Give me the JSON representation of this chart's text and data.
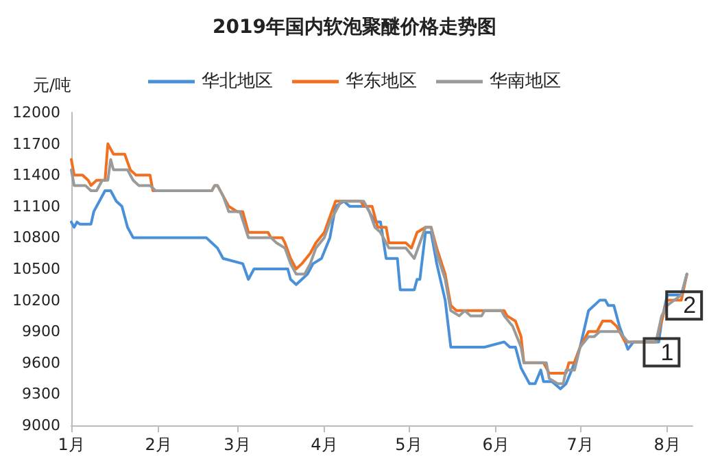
{
  "chart_data": {
    "type": "line",
    "title": "2019年国内软泡聚醚价格走势图",
    "ylabel": "元/吨",
    "xlim": [
      "2019-01-01",
      "2019-08-10"
    ],
    "xticks": [
      {
        "value": "2019-01-01",
        "label": "1月"
      },
      {
        "value": "2019-02-01",
        "label": "2月"
      },
      {
        "value": "2019-03-01",
        "label": "3月"
      },
      {
        "value": "2019-04-01",
        "label": "4月"
      },
      {
        "value": "2019-05-01",
        "label": "5月"
      },
      {
        "value": "2019-06-01",
        "label": "6月"
      },
      {
        "value": "2019-07-01",
        "label": "7月"
      },
      {
        "value": "2019-08-01",
        "label": "8月"
      }
    ],
    "ylim": [
      9000,
      12000
    ],
    "yticks": [
      9000,
      9300,
      9600,
      9900,
      10200,
      10500,
      10800,
      11100,
      11400,
      11700,
      12000
    ],
    "grid": false,
    "legend": "top",
    "marker": "none",
    "line_style": "solid",
    "annotations": [
      {
        "text": "1",
        "x": "2019-07-30",
        "y": 9700
      },
      {
        "text": "2",
        "x": "2019-08-07",
        "y": 10150
      }
    ],
    "series": [
      {
        "name": "华北地区",
        "color": "#4a90d9",
        "x": [
          "2019-01-01",
          "2019-01-02",
          "2019-01-03",
          "2019-01-04",
          "2019-01-08",
          "2019-01-09",
          "2019-01-13",
          "2019-01-15",
          "2019-01-17",
          "2019-01-19",
          "2019-01-21",
          "2019-01-23",
          "2019-02-18",
          "2019-02-20",
          "2019-02-22",
          "2019-02-24",
          "2019-03-03",
          "2019-03-05",
          "2019-03-07",
          "2019-03-19",
          "2019-03-20",
          "2019-03-22",
          "2019-03-24",
          "2019-03-26",
          "2019-03-28",
          "2019-03-31",
          "2019-04-03",
          "2019-04-05",
          "2019-04-08",
          "2019-04-10",
          "2019-04-16",
          "2019-04-17",
          "2019-04-19",
          "2019-04-21",
          "2019-04-23",
          "2019-04-27",
          "2019-04-28",
          "2019-05-03",
          "2019-05-04",
          "2019-05-05",
          "2019-05-07",
          "2019-05-09",
          "2019-05-11",
          "2019-05-14",
          "2019-05-16",
          "2019-05-28",
          "2019-06-04",
          "2019-06-06",
          "2019-06-08",
          "2019-06-10",
          "2019-06-12",
          "2019-06-13",
          "2019-06-15",
          "2019-06-17",
          "2019-06-18",
          "2019-06-21",
          "2019-06-24",
          "2019-06-26",
          "2019-06-28",
          "2019-07-01",
          "2019-07-04",
          "2019-07-08",
          "2019-07-10",
          "2019-07-11",
          "2019-07-13",
          "2019-07-15",
          "2019-07-18",
          "2019-07-20",
          "2019-07-29",
          "2019-07-30",
          "2019-08-01",
          "2019-08-06",
          "2019-08-08"
        ],
        "values": [
          10950,
          10900,
          10950,
          10930,
          10930,
          11050,
          11250,
          11250,
          11150,
          11100,
          10900,
          10800,
          10800,
          10750,
          10700,
          10600,
          10550,
          10400,
          10500,
          10500,
          10400,
          10350,
          10400,
          10450,
          10550,
          10600,
          10800,
          11100,
          11150,
          11100,
          11100,
          11050,
          10950,
          10950,
          10600,
          10600,
          10300,
          10300,
          10400,
          10400,
          10850,
          10850,
          10550,
          10200,
          9750,
          9750,
          9800,
          9750,
          9750,
          9550,
          9450,
          9400,
          9400,
          9530,
          9420,
          9420,
          9350,
          9400,
          9530,
          9750,
          10100,
          10200,
          10200,
          10150,
          10150,
          9950,
          9730,
          9800,
          9800,
          10000,
          10250,
          10250,
          10450
        ]
      },
      {
        "name": "华东地区",
        "color": "#f07020",
        "x": [
          "2019-01-01",
          "2019-01-02",
          "2019-01-05",
          "2019-01-07",
          "2019-01-08",
          "2019-01-10",
          "2019-01-13",
          "2019-01-14",
          "2019-01-16",
          "2019-01-20",
          "2019-01-22",
          "2019-01-24",
          "2019-01-29",
          "2019-01-30",
          "2019-02-20",
          "2019-02-21",
          "2019-02-22",
          "2019-02-24",
          "2019-02-26",
          "2019-03-01",
          "2019-03-03",
          "2019-03-05",
          "2019-03-12",
          "2019-03-13",
          "2019-03-17",
          "2019-03-18",
          "2019-03-20",
          "2019-03-22",
          "2019-03-24",
          "2019-03-27",
          "2019-03-29",
          "2019-04-01",
          "2019-04-03",
          "2019-04-05",
          "2019-04-14",
          "2019-04-15",
          "2019-04-18",
          "2019-04-20",
          "2019-04-23",
          "2019-04-24",
          "2019-04-30",
          "2019-05-02",
          "2019-05-04",
          "2019-05-07",
          "2019-05-09",
          "2019-05-11",
          "2019-05-14",
          "2019-05-16",
          "2019-05-18",
          "2019-05-20",
          "2019-06-04",
          "2019-06-05",
          "2019-06-08",
          "2019-06-10",
          "2019-06-11",
          "2019-06-18",
          "2019-06-20",
          "2019-06-26",
          "2019-06-27",
          "2019-06-29",
          "2019-07-01",
          "2019-07-04",
          "2019-07-07",
          "2019-07-09",
          "2019-07-12",
          "2019-07-14",
          "2019-07-17",
          "2019-07-28",
          "2019-08-01",
          "2019-08-06",
          "2019-08-08"
        ],
        "values": [
          11550,
          11400,
          11400,
          11350,
          11300,
          11350,
          11350,
          11700,
          11600,
          11600,
          11450,
          11400,
          11400,
          11250,
          11250,
          11300,
          11300,
          11200,
          11100,
          11050,
          11050,
          10850,
          10850,
          10800,
          10800,
          10750,
          10600,
          10500,
          10550,
          10650,
          10750,
          10850,
          11000,
          11150,
          11150,
          11100,
          11100,
          10900,
          10900,
          10750,
          10750,
          10700,
          10850,
          10900,
          10900,
          10700,
          10450,
          10150,
          10100,
          10100,
          10100,
          10050,
          10000,
          9850,
          9600,
          9600,
          9500,
          9500,
          9600,
          9600,
          9750,
          9900,
          9900,
          10000,
          10000,
          9950,
          9800,
          9800,
          10200,
          10200,
          10450
        ]
      },
      {
        "name": "华南地区",
        "color": "#9a9a9a",
        "x": [
          "2019-01-01",
          "2019-01-02",
          "2019-01-06",
          "2019-01-08",
          "2019-01-10",
          "2019-01-12",
          "2019-01-14",
          "2019-01-15",
          "2019-01-16",
          "2019-01-21",
          "2019-01-23",
          "2019-01-25",
          "2019-01-29",
          "2019-01-31",
          "2019-02-20",
          "2019-02-21",
          "2019-02-22",
          "2019-02-24",
          "2019-02-26",
          "2019-03-02",
          "2019-03-05",
          "2019-03-13",
          "2019-03-15",
          "2019-03-18",
          "2019-03-20",
          "2019-03-22",
          "2019-03-25",
          "2019-03-27",
          "2019-03-29",
          "2019-04-01",
          "2019-04-03",
          "2019-04-05",
          "2019-04-07",
          "2019-04-15",
          "2019-04-17",
          "2019-04-19",
          "2019-04-21",
          "2019-04-24",
          "2019-04-30",
          "2019-05-03",
          "2019-05-07",
          "2019-05-09",
          "2019-05-11",
          "2019-05-14",
          "2019-05-16",
          "2019-05-19",
          "2019-05-21",
          "2019-05-23",
          "2019-05-27",
          "2019-05-28",
          "2019-06-03",
          "2019-06-04",
          "2019-06-07",
          "2019-06-10",
          "2019-06-11",
          "2019-06-19",
          "2019-06-20",
          "2019-06-23",
          "2019-06-25",
          "2019-06-26",
          "2019-06-29",
          "2019-07-01",
          "2019-07-04",
          "2019-07-06",
          "2019-07-08",
          "2019-07-15",
          "2019-07-18",
          "2019-07-28",
          "2019-07-30",
          "2019-08-01",
          "2019-08-06",
          "2019-08-08"
        ],
        "values": [
          11450,
          11300,
          11300,
          11250,
          11250,
          11350,
          11350,
          11550,
          11450,
          11450,
          11350,
          11300,
          11300,
          11250,
          11250,
          11300,
          11300,
          11200,
          11050,
          11050,
          10800,
          10800,
          10750,
          10700,
          10550,
          10450,
          10450,
          10550,
          10700,
          10800,
          10950,
          11050,
          11150,
          11150,
          11050,
          10900,
          10850,
          10700,
          10700,
          10600,
          10900,
          10900,
          10650,
          10400,
          10100,
          10050,
          10100,
          10050,
          10050,
          10100,
          10100,
          10050,
          9950,
          9750,
          9600,
          9600,
          9450,
          9400,
          9400,
          9530,
          9530,
          9750,
          9850,
          9850,
          9900,
          9900,
          9800,
          9800,
          10050,
          10150,
          10250,
          10450
        ]
      }
    ]
  }
}
